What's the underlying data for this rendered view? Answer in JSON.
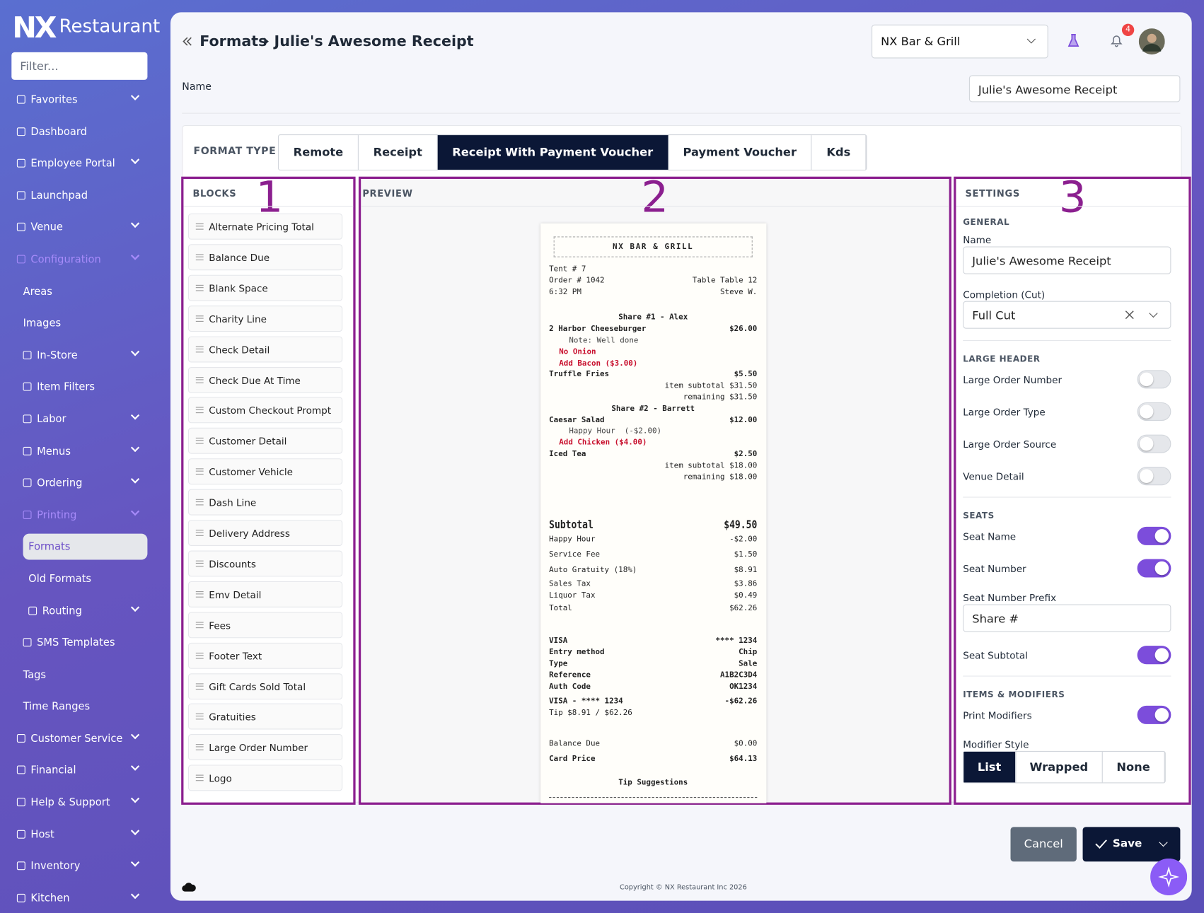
{
  "sidebar": {
    "brand": {
      "mark": "NX",
      "name": "Restaurant"
    },
    "filter_placeholder": "Filter...",
    "items": [
      {
        "label": "Favorites",
        "level": 0,
        "icon": true,
        "expand": true
      },
      {
        "label": "Dashboard",
        "level": 0,
        "icon": true
      },
      {
        "label": "Employee Portal",
        "level": 0,
        "icon": true,
        "expand": true
      },
      {
        "label": "Launchpad",
        "level": 0,
        "icon": true
      },
      {
        "label": "Venue",
        "level": 0,
        "icon": true,
        "expand": true
      },
      {
        "label": "Configuration",
        "level": 0,
        "icon": true,
        "expand": true,
        "muted": true
      },
      {
        "label": "Areas",
        "level": 1
      },
      {
        "label": "Images",
        "level": 1
      },
      {
        "label": "In-Store",
        "level": 1,
        "icon": true,
        "expand": true
      },
      {
        "label": "Item Filters",
        "level": 1,
        "icon": true
      },
      {
        "label": "Labor",
        "level": 1,
        "icon": true,
        "expand": true
      },
      {
        "label": "Menus",
        "level": 1,
        "icon": true,
        "expand": true
      },
      {
        "label": "Ordering",
        "level": 1,
        "icon": true,
        "expand": true
      },
      {
        "label": "Printing",
        "level": 1,
        "icon": true,
        "expand": true,
        "muted": true
      },
      {
        "label": "Formats",
        "level": 2,
        "selected": true
      },
      {
        "label": "Old Formats",
        "level": 2
      },
      {
        "label": "Routing",
        "level": 2,
        "icon": true,
        "expand": true
      },
      {
        "label": "SMS Templates",
        "level": 1,
        "icon": true
      },
      {
        "label": "Tags",
        "level": 1
      },
      {
        "label": "Time Ranges",
        "level": 1
      },
      {
        "label": "Customer Service",
        "level": 0,
        "icon": true,
        "expand": true
      },
      {
        "label": "Financial",
        "level": 0,
        "icon": true,
        "expand": true
      },
      {
        "label": "Help & Support",
        "level": 0,
        "icon": true,
        "expand": true
      },
      {
        "label": "Host",
        "level": 0,
        "icon": true,
        "expand": true
      },
      {
        "label": "Inventory",
        "level": 0,
        "icon": true,
        "expand": true
      },
      {
        "label": "Kitchen",
        "level": 0,
        "icon": true,
        "expand": true
      }
    ]
  },
  "header": {
    "breadcrumb": [
      "Formats",
      "Julie's Awesome Receipt"
    ],
    "venue": "NX Bar & Grill",
    "notifications": "4"
  },
  "name_field": {
    "label": "Name",
    "value": "Julie's Awesome Receipt"
  },
  "format_type": {
    "label": "FORMAT TYPE",
    "tabs": [
      "Remote",
      "Receipt",
      "Receipt With Payment Voucher",
      "Payment Voucher",
      "Kds"
    ],
    "active": 2
  },
  "blocks": {
    "title": "BLOCKS",
    "marker": "1",
    "items": [
      "Alternate Pricing Total",
      "Balance Due",
      "Blank Space",
      "Charity Line",
      "Check Detail",
      "Check Due At Time",
      "Custom Checkout Prompt",
      "Customer Detail",
      "Customer Vehicle",
      "Dash Line",
      "Delivery Address",
      "Discounts",
      "Emv Detail",
      "Fees",
      "Footer Text",
      "Gift Cards Sold Total",
      "Gratuities",
      "Large Order Number",
      "Logo"
    ]
  },
  "preview": {
    "title": "PREVIEW",
    "marker": "2",
    "receipt": {
      "header": "NX BAR & GRILL",
      "sections": [
        {
          "rows": [
            {
              "left": "Tent # 7"
            },
            {
              "left": "Order # 1042",
              "right": "Table Table 12"
            },
            {
              "left": "6:32 PM",
              "right": "Steve W."
            }
          ]
        },
        {
          "rows": [
            {
              "left": "Share #1 - Alex",
              "style": "center"
            },
            {
              "left": "2 Harbor Cheeseburger",
              "right": "$26.00",
              "style": "bold"
            },
            {
              "left": "Note: Well done",
              "style": "note"
            },
            {
              "left": "No Onion",
              "style": "red"
            },
            {
              "left": "Add Bacon ($3.00)",
              "style": "red"
            },
            {
              "left": "Truffle Fries",
              "right": "$5.50",
              "style": "bold"
            },
            {
              "right": "item subtotal $31.50"
            },
            {
              "right": "remaining $31.50"
            },
            {
              "left": "Share #2 - Barrett",
              "style": "center"
            },
            {
              "left": "Caesar Salad",
              "right": "$12.00",
              "style": "bold"
            },
            {
              "left": "Happy Hour  (-$2.00)",
              "style": "note"
            },
            {
              "left": "Add Chicken ($4.00)",
              "style": "red"
            },
            {
              "left": "Iced Tea",
              "right": "$2.50",
              "style": "bold"
            },
            {
              "right": "item subtotal $18.00"
            },
            {
              "right": "remaining $18.00"
            }
          ]
        },
        {
          "rows": [
            {
              "left": "Subtotal",
              "right": "$49.50",
              "style": "big"
            },
            {
              "left": "Happy Hour",
              "right": "-$2.00"
            },
            {
              "left": "Service Fee",
              "right": "$1.50"
            },
            {
              "left": "Auto Gratuity (18%)",
              "right": "$8.91"
            },
            {
              "left": "Sales Tax",
              "right": "$3.86",
              "style": "tight"
            },
            {
              "left": "Liquor Tax",
              "right": "$0.49",
              "style": "tight"
            },
            {
              "left": "Total",
              "right": "$62.26"
            }
          ]
        },
        {
          "rows": [
            {
              "left": "VISA",
              "right": "**** 1234",
              "style": "bold"
            },
            {
              "left": "Entry method",
              "right": "Chip",
              "style": "bold"
            },
            {
              "left": "Type",
              "right": "Sale",
              "style": "bold"
            },
            {
              "left": "Reference",
              "right": "A1B2C3D4",
              "style": "bold"
            },
            {
              "left": "Auth Code",
              "right": "OK1234",
              "style": "bold"
            },
            {
              "left": "VISA - **** 1234",
              "right": "-$62.26",
              "style": "boldgap"
            },
            {
              "left": "Tip $8.91 / $62.26"
            }
          ]
        },
        {
          "rows": [
            {
              "left": "Balance Due",
              "right": "$0.00"
            },
            {
              "left": "Card Price",
              "right": "$64.13",
              "style": "bold"
            }
          ]
        },
        {
          "rows": [
            {
              "left": "Tip Suggestions",
              "style": "center"
            }
          ]
        }
      ]
    }
  },
  "settings": {
    "title": "SETTINGS",
    "marker": "3",
    "sections": [
      {
        "title": "GENERAL",
        "fields": [
          {
            "label": "Name",
            "kind": "input",
            "value": "Julie's Awesome Receipt"
          },
          {
            "label": "Completion (Cut)",
            "kind": "select",
            "value": "Full Cut"
          }
        ]
      },
      {
        "title": "LARGE HEADER",
        "fields": [
          {
            "label": "Large Order Number",
            "kind": "toggle",
            "on": false
          },
          {
            "label": "Large Order Type",
            "kind": "toggle",
            "on": false
          },
          {
            "label": "Large Order Source",
            "kind": "toggle",
            "on": false
          },
          {
            "label": "Venue Detail",
            "kind": "toggle",
            "on": false
          }
        ]
      },
      {
        "title": "SEATS",
        "fields": [
          {
            "label": "Seat Name",
            "kind": "toggle",
            "on": true
          },
          {
            "label": "Seat Number",
            "kind": "toggle",
            "on": true
          },
          {
            "label": "Seat Number Prefix",
            "kind": "input",
            "value": "Share #"
          },
          {
            "label": "Seat Subtotal",
            "kind": "toggle",
            "on": true
          }
        ]
      },
      {
        "title": "ITEMS & MODIFIERS",
        "fields": [
          {
            "label": "Print Modifiers",
            "kind": "toggle",
            "on": true
          },
          {
            "label": "Modifier Style",
            "kind": "segmented",
            "options": [
              "List",
              "Wrapped",
              "None"
            ],
            "selected": 0
          }
        ]
      }
    ]
  },
  "actions": {
    "cancel": "Cancel",
    "save": "Save"
  },
  "footer": {
    "copyright": "Copyright © NX Restaurant Inc 2026"
  }
}
